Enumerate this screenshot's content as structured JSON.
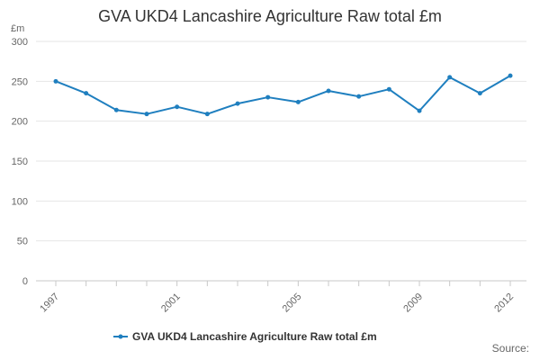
{
  "chart_data": {
    "type": "line",
    "title": "GVA UKD4 Lancashire Agriculture Raw total £m",
    "unit_label": "£m",
    "xlabel": "",
    "ylabel": "",
    "x": [
      1997,
      1998,
      1999,
      2000,
      2001,
      2002,
      2003,
      2004,
      2005,
      2006,
      2007,
      2008,
      2009,
      2010,
      2011,
      2012
    ],
    "x_tick_labels": [
      "1997",
      "2001",
      "2005",
      "2009",
      "2012"
    ],
    "ylim": [
      0,
      300
    ],
    "y_ticks": [
      0,
      50,
      100,
      150,
      200,
      250,
      300
    ],
    "grid": true,
    "legend_position": "bottom",
    "series": [
      {
        "name": "GVA UKD4 Lancashire Agriculture Raw total £m",
        "color": "#1f7fbf",
        "values": [
          250,
          235,
          214,
          209,
          218,
          209,
          222,
          230,
          224,
          238,
          231,
          240,
          213,
          255,
          235,
          257
        ]
      }
    ]
  },
  "source_label": "Source:"
}
